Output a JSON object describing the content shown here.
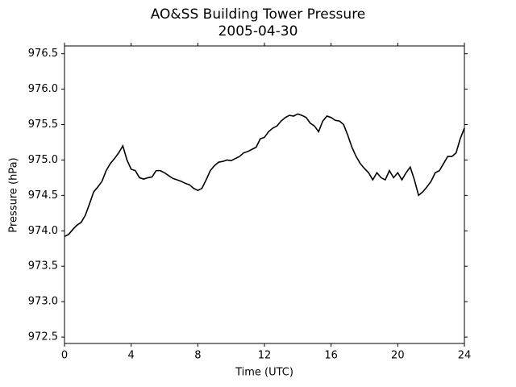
{
  "chart_data": {
    "type": "line",
    "title": "AO&SS Building Tower Pressure",
    "subtitle": "2005-04-30",
    "x_label": "Time (UTC)",
    "y_label": "Pressure (hPa)",
    "x": [
      0,
      0.25,
      0.5,
      0.75,
      1,
      1.25,
      1.5,
      1.75,
      2,
      2.25,
      2.5,
      2.75,
      3,
      3.25,
      3.5,
      3.75,
      4,
      4.25,
      4.5,
      4.75,
      5,
      5.25,
      5.5,
      5.75,
      6,
      6.25,
      6.5,
      6.75,
      7,
      7.25,
      7.5,
      7.75,
      8,
      8.25,
      8.5,
      8.75,
      9,
      9.25,
      9.5,
      9.75,
      10,
      10.25,
      10.5,
      10.75,
      11,
      11.25,
      11.5,
      11.75,
      12,
      12.25,
      12.5,
      12.75,
      13,
      13.25,
      13.5,
      13.75,
      14,
      14.25,
      14.5,
      14.75,
      15,
      15.25,
      15.5,
      15.75,
      16,
      16.25,
      16.5,
      16.75,
      17,
      17.25,
      17.5,
      17.75,
      18,
      18.25,
      18.5,
      18.75,
      19,
      19.25,
      19.5,
      19.75,
      20,
      20.25,
      20.5,
      20.75,
      21,
      21.25,
      21.5,
      21.75,
      22,
      22.25,
      22.5,
      22.75,
      23,
      23.25,
      23.5,
      23.75,
      24
    ],
    "series": [
      {
        "name": "Pressure",
        "color": "#000000",
        "values": [
          973.92,
          973.95,
          974.02,
          974.08,
          974.12,
          974.22,
          974.38,
          974.55,
          974.62,
          974.7,
          974.85,
          974.95,
          975.02,
          975.1,
          975.2,
          975.0,
          974.87,
          974.85,
          974.75,
          974.73,
          974.75,
          974.76,
          974.85,
          974.85,
          974.82,
          974.78,
          974.74,
          974.72,
          974.7,
          974.67,
          974.65,
          974.6,
          974.57,
          974.6,
          974.72,
          974.85,
          974.92,
          974.97,
          974.98,
          975.0,
          974.99,
          975.02,
          975.05,
          975.1,
          975.12,
          975.15,
          975.18,
          975.3,
          975.32,
          975.4,
          975.45,
          975.48,
          975.55,
          975.6,
          975.63,
          975.62,
          975.65,
          975.63,
          975.6,
          975.52,
          975.48,
          975.4,
          975.55,
          975.62,
          975.6,
          975.56,
          975.55,
          975.5,
          975.35,
          975.18,
          975.05,
          974.95,
          974.88,
          974.82,
          974.72,
          974.82,
          974.75,
          974.72,
          974.85,
          974.75,
          974.82,
          974.72,
          974.82,
          974.9,
          974.72,
          974.5,
          974.55,
          974.62,
          974.7,
          974.82,
          974.85,
          974.95,
          975.05,
          975.05,
          975.1,
          975.3,
          975.45
        ]
      }
    ],
    "xlim": [
      0,
      24
    ],
    "xticks": [
      0,
      4,
      8,
      12,
      16,
      20,
      24
    ],
    "ylim": [
      972.41,
      976.61
    ],
    "yticks": [
      {
        "value": 972.5,
        "label": "972.5"
      },
      {
        "value": 973,
        "label": "973.0"
      },
      973.5,
      {
        "value": 974,
        "label": "974.0"
      },
      974.5,
      {
        "value": 975,
        "label": "975.0"
      },
      975.5,
      {
        "value": 976,
        "label": "976.0"
      },
      976.5
    ]
  }
}
